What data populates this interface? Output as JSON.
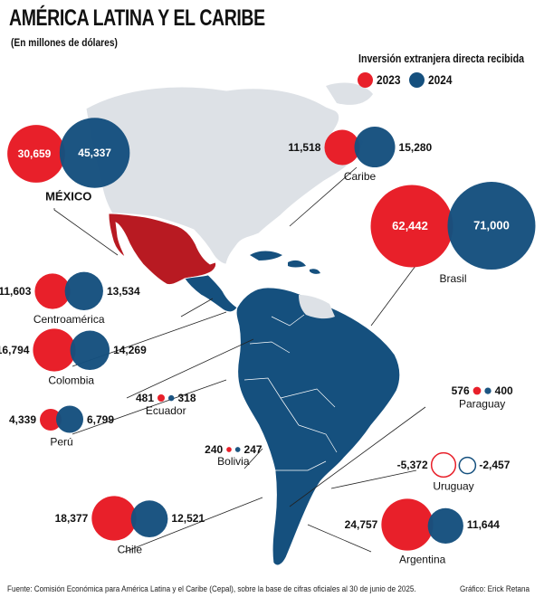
{
  "title": "AMÉRICA LATINA Y EL CARIBE",
  "subtitle": "(En millones de dólares)",
  "legend": {
    "title": "Inversión extranjera directa recibida",
    "items": [
      {
        "label": "2023",
        "color": "#e8202a"
      },
      {
        "label": "2024",
        "color": "#15507e"
      }
    ]
  },
  "colors": {
    "y2023": "#e8202a",
    "y2024": "#15507e",
    "mexico": "#b81a22",
    "land": "#dde1e6",
    "latam": "#15507e"
  },
  "regions": [
    {
      "name": "MÉXICO",
      "v2023": "30,659",
      "v2024": "45,337",
      "n2023": 30659,
      "n2024": 45337
    },
    {
      "name": "Caribe",
      "v2023": "11,518",
      "v2024": "15,280",
      "n2023": 11518,
      "n2024": 15280
    },
    {
      "name": "Brasil",
      "v2023": "62,442",
      "v2024": "71,000",
      "n2023": 62442,
      "n2024": 71000
    },
    {
      "name": "Centroamérica",
      "v2023": "11,603",
      "v2024": "13,534",
      "n2023": 11603,
      "n2024": 13534
    },
    {
      "name": "Colombia",
      "v2023": "16,794",
      "v2024": "14,269",
      "n2023": 16794,
      "n2024": 14269
    },
    {
      "name": "Ecuador",
      "v2023": "481",
      "v2024": "318",
      "n2023": 481,
      "n2024": 318
    },
    {
      "name": "Paraguay",
      "v2023": "576",
      "v2024": "400",
      "n2023": 576,
      "n2024": 400
    },
    {
      "name": "Perú",
      "v2023": "4,339",
      "v2024": "6,799",
      "n2023": 4339,
      "n2024": 6799
    },
    {
      "name": "Bolivia",
      "v2023": "240",
      "v2024": "247",
      "n2023": 240,
      "n2024": 247
    },
    {
      "name": "Uruguay",
      "v2023": "-5,372",
      "v2024": "-2,457",
      "n2023": -5372,
      "n2024": -2457
    },
    {
      "name": "Chile",
      "v2023": "18,377",
      "v2024": "12,521",
      "n2023": 18377,
      "n2024": 12521
    },
    {
      "name": "Argentina",
      "v2023": "24,757",
      "v2024": "11,644",
      "n2023": 24757,
      "n2024": 11644
    }
  ],
  "footer": "Fuente: Comisión Económica para América Latina y el Caribe (Cepal), sobre la base de cifras oficiales al 30 de junio de 2025.",
  "credit": "Gráfico: Erick Retana"
}
